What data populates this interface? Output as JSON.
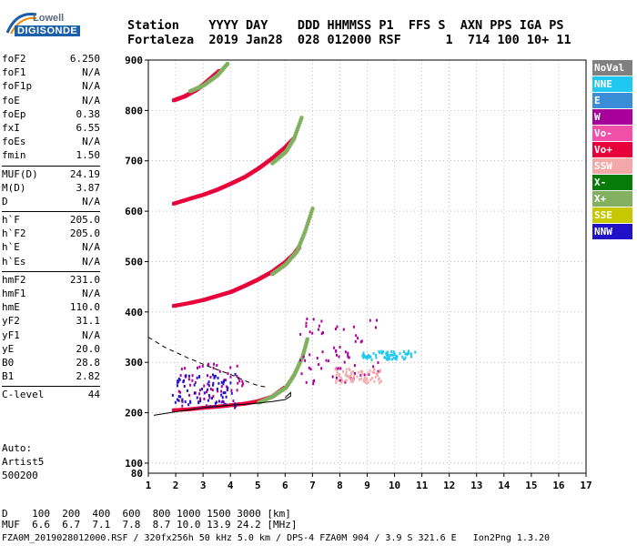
{
  "logo": {
    "line1": "Lowell",
    "line2": "DIGISONDE"
  },
  "header": {
    "line1": "Station    YYYY DAY    DDD HHMMSS P1  FFS S  AXN PPS IGA PS",
    "line2": "Fortaleza  2019 Jan28  028 012000 RSF      1  714 100 10+ 11"
  },
  "params": {
    "group1": [
      {
        "k": "foF2",
        "v": "6.250"
      },
      {
        "k": "foF1",
        "v": "N/A"
      },
      {
        "k": "foF1p",
        "v": "N/A"
      },
      {
        "k": "foE",
        "v": "N/A"
      },
      {
        "k": "foEp",
        "v": "0.38"
      },
      {
        "k": "fxI",
        "v": "6.55"
      },
      {
        "k": "foEs",
        "v": "N/A"
      },
      {
        "k": "fmin",
        "v": "1.50"
      }
    ],
    "group2": [
      {
        "k": "MUF(D)",
        "v": "24.19"
      },
      {
        "k": "M(D)",
        "v": "3.87"
      },
      {
        "k": "D",
        "v": "N/A"
      }
    ],
    "group3": [
      {
        "k": "h`F",
        "v": "205.0"
      },
      {
        "k": "h`F2",
        "v": "205.0"
      },
      {
        "k": "h`E",
        "v": "N/A"
      },
      {
        "k": "h`Es",
        "v": "N/A"
      }
    ],
    "group4": [
      {
        "k": "hmF2",
        "v": "231.0"
      },
      {
        "k": "hmF1",
        "v": "N/A"
      },
      {
        "k": "hmE",
        "v": "110.0"
      },
      {
        "k": "yF2",
        "v": "31.1"
      },
      {
        "k": "yF1",
        "v": "N/A"
      },
      {
        "k": "yE",
        "v": "20.0"
      },
      {
        "k": "B0",
        "v": "28.8"
      },
      {
        "k": "B1",
        "v": "2.82"
      }
    ],
    "group5": [
      {
        "k": "C-level",
        "v": "44"
      }
    ]
  },
  "auto": {
    "line1": "Auto:",
    "line2": "Artist5",
    "line3": "500200"
  },
  "legend": [
    {
      "label": "NoVal",
      "color": "#808080"
    },
    {
      "label": "NNE",
      "color": "#1ec8f0"
    },
    {
      "label": "E",
      "color": "#3a8ed8"
    },
    {
      "label": "W",
      "color": "#a8009a"
    },
    {
      "label": "Vo-",
      "color": "#f050a8"
    },
    {
      "label": "Vo+",
      "color": "#e8003a"
    },
    {
      "label": "SSW",
      "color": "#f4a8a8"
    },
    {
      "label": "X-",
      "color": "#087a08"
    },
    {
      "label": "X+",
      "color": "#80b060"
    },
    {
      "label": "SSE",
      "color": "#c8c800"
    },
    {
      "label": "NNW",
      "color": "#2010c8"
    }
  ],
  "muf": {
    "line1": "D    100  200  400  600  800 1000 1500 3000 [km]",
    "line2": "MUF  6.6  6.7  7.1  7.8  8.7 10.0 13.9 24.2 [MHz]"
  },
  "footer": "FZA0M_2019028012000.RSF / 320fx256h 50 kHz 5.0 km / DPS-4 FZA0M 904 / 3.9 S 321.6 E   Ion2Png 1.3.20",
  "chart_data": {
    "type": "scatter",
    "title": "",
    "xlabel": "",
    "ylabel": "",
    "xlim": [
      1,
      17
    ],
    "ylim": [
      80,
      900
    ],
    "x_ticks": [
      1,
      2,
      3,
      4,
      5,
      6,
      7,
      8,
      9,
      10,
      11,
      12,
      13,
      14,
      15,
      16,
      17
    ],
    "y_ticks": [
      100,
      200,
      300,
      400,
      500,
      600,
      700,
      800,
      900
    ],
    "grid": "dotted",
    "legend_position": "right",
    "series": [
      {
        "name": "Vo+",
        "color": "#e8003a",
        "traces": [
          {
            "x": [
              1.9,
              2.5,
              3,
              3.5,
              4,
              4.5,
              5,
              5.5,
              6
            ],
            "y": [
              205,
              207,
              210,
              212,
              215,
              218,
              223,
              232,
              252
            ]
          },
          {
            "x": [
              1.9,
              2.5,
              3,
              3.5,
              4,
              4.5,
              5,
              5.5,
              6,
              6.3,
              6.5
            ],
            "y": [
              412,
              418,
              424,
              432,
              440,
              452,
              465,
              480,
              500,
              515,
              530
            ]
          },
          {
            "x": [
              1.9,
              2.5,
              3,
              3.5,
              4,
              4.5,
              5,
              5.5,
              6,
              6.3
            ],
            "y": [
              615,
              625,
              633,
              643,
              655,
              668,
              685,
              705,
              728,
              745
            ]
          },
          {
            "x": [
              1.9,
              2.3,
              2.7,
              3,
              3.3,
              3.6
            ],
            "y": [
              820,
              828,
              840,
              852,
              866,
              880
            ]
          }
        ]
      },
      {
        "name": "X+",
        "color": "#80b060",
        "traces": [
          {
            "x": [
              5,
              5.5,
              6,
              6.3,
              6.6,
              6.8
            ],
            "y": [
              220,
              232,
              250,
              275,
              310,
              350
            ]
          },
          {
            "x": [
              5.5,
              6,
              6.4,
              6.7,
              7
            ],
            "y": [
              475,
              495,
              520,
              560,
              610
            ]
          },
          {
            "x": [
              5.5,
              6,
              6.3,
              6.6
            ],
            "y": [
              695,
              718,
              745,
              790
            ]
          },
          {
            "x": [
              2.5,
              3,
              3.5,
              3.9
            ],
            "y": [
              838,
              850,
              870,
              895
            ]
          }
        ]
      },
      {
        "name": "W",
        "color": "#a8009a",
        "clusters": [
          {
            "x0": 6.5,
            "x1": 9.5,
            "y0": 260,
            "y1": 390
          },
          {
            "x0": 2,
            "x1": 4.5,
            "y0": 210,
            "y1": 300
          }
        ]
      },
      {
        "name": "NNE",
        "color": "#1ec8f0",
        "clusters": [
          {
            "x0": 8.8,
            "x1": 10.8,
            "y0": 308,
            "y1": 325
          }
        ]
      },
      {
        "name": "SSW",
        "color": "#f4a8a8",
        "clusters": [
          {
            "x0": 7.8,
            "x1": 9.5,
            "y0": 262,
            "y1": 290
          }
        ]
      },
      {
        "name": "NNW",
        "color": "#2010c8",
        "clusters": [
          {
            "x0": 1.8,
            "x1": 4.2,
            "y0": 215,
            "y1": 280
          }
        ]
      }
    ],
    "profile_lines": [
      {
        "style": "solid",
        "x": [
          1.2,
          2,
          3,
          4,
          4.8,
          5.5,
          6,
          6.2,
          6.2,
          6
        ],
        "y": [
          195,
          202,
          210,
          215,
          218,
          222,
          226,
          233,
          240,
          230
        ]
      },
      {
        "style": "dashed",
        "x": [
          1,
          1.6,
          2.4,
          3.2,
          4,
          4.6,
          5,
          5.4
        ],
        "y": [
          350,
          330,
          310,
          292,
          276,
          262,
          254,
          250
        ]
      }
    ]
  }
}
